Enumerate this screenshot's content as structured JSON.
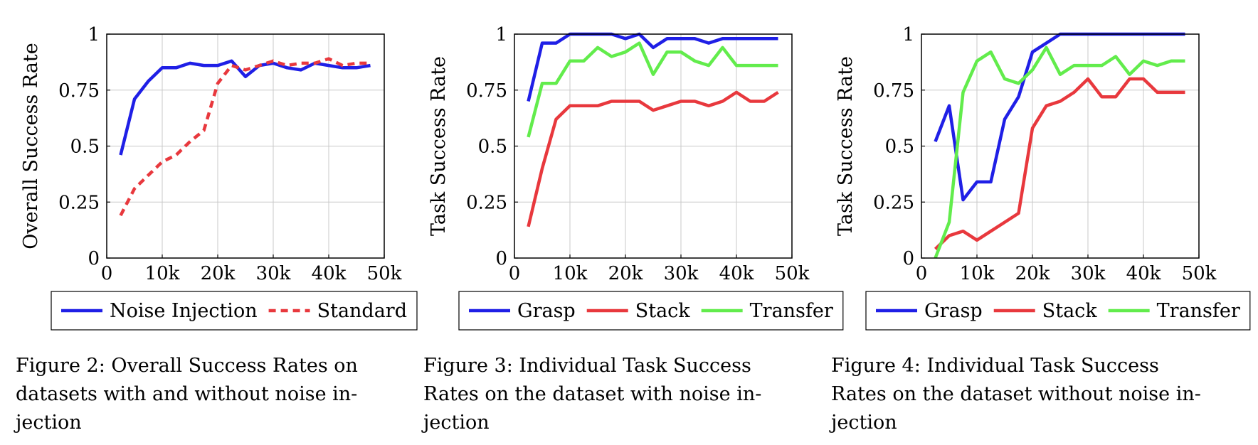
{
  "chart_data": [
    {
      "type": "line",
      "ylabel": "Overall Success Rate",
      "xlabel": "",
      "xlim": [
        0,
        50000
      ],
      "ylim": [
        0,
        1
      ],
      "xticks": [
        0,
        10000,
        20000,
        30000,
        40000,
        50000
      ],
      "xtick_labels": [
        "0",
        "10k",
        "20k",
        "30k",
        "40k",
        "50k"
      ],
      "yticks": [
        0,
        0.25,
        0.5,
        0.75,
        1
      ],
      "ytick_labels": [
        "0",
        "0.25",
        "0.5",
        "0.75",
        "1"
      ],
      "grid": true,
      "legend_position": "bottom",
      "series": [
        {
          "name": "Noise Injection",
          "color": "#1f1fe6",
          "dash": "solid",
          "x": [
            2500,
            5000,
            7500,
            10000,
            12500,
            15000,
            17500,
            20000,
            22500,
            25000,
            27500,
            30000,
            32500,
            35000,
            37500,
            40000,
            42500,
            45000,
            47500
          ],
          "y": [
            0.46,
            0.71,
            0.79,
            0.85,
            0.85,
            0.87,
            0.86,
            0.86,
            0.88,
            0.81,
            0.86,
            0.87,
            0.85,
            0.84,
            0.87,
            0.86,
            0.85,
            0.85,
            0.86
          ]
        },
        {
          "name": "Standard",
          "color": "#e8383d",
          "dash": "dashed",
          "x": [
            2500,
            5000,
            7500,
            10000,
            12500,
            15000,
            17500,
            20000,
            22500,
            25000,
            27500,
            30000,
            32500,
            35000,
            37500,
            40000,
            42500,
            45000,
            47500
          ],
          "y": [
            0.19,
            0.31,
            0.37,
            0.43,
            0.46,
            0.52,
            0.57,
            0.78,
            0.86,
            0.84,
            0.86,
            0.88,
            0.86,
            0.87,
            0.87,
            0.89,
            0.86,
            0.87,
            0.87
          ]
        }
      ],
      "caption": [
        "Figure 2: Overall Success Rates on",
        "datasets with and without noise in-",
        "jection"
      ]
    },
    {
      "type": "line",
      "ylabel": "Task Success Rate",
      "xlabel": "",
      "xlim": [
        0,
        50000
      ],
      "ylim": [
        0,
        1
      ],
      "xticks": [
        0,
        10000,
        20000,
        30000,
        40000,
        50000
      ],
      "xtick_labels": [
        "0",
        "10k",
        "20k",
        "30k",
        "40k",
        "50k"
      ],
      "yticks": [
        0,
        0.25,
        0.5,
        0.75,
        1
      ],
      "ytick_labels": [
        "0",
        "0.25",
        "0.5",
        "0.75",
        "1"
      ],
      "grid": true,
      "legend_position": "bottom",
      "series": [
        {
          "name": "Grasp",
          "color": "#1f1fe6",
          "dash": "solid",
          "x": [
            2500,
            5000,
            7500,
            10000,
            12500,
            15000,
            17500,
            20000,
            22500,
            25000,
            27500,
            30000,
            32500,
            35000,
            37500,
            40000,
            42500,
            45000,
            47500
          ],
          "y": [
            0.7,
            0.96,
            0.96,
            1.0,
            1.0,
            1.0,
            1.0,
            0.98,
            1.0,
            0.94,
            0.98,
            0.98,
            0.98,
            0.96,
            0.98,
            0.98,
            0.98,
            0.98,
            0.98
          ]
        },
        {
          "name": "Stack",
          "color": "#e8383d",
          "dash": "solid",
          "x": [
            2500,
            5000,
            7500,
            10000,
            12500,
            15000,
            17500,
            20000,
            22500,
            25000,
            27500,
            30000,
            32500,
            35000,
            37500,
            40000,
            42500,
            45000,
            47500
          ],
          "y": [
            0.14,
            0.4,
            0.62,
            0.68,
            0.68,
            0.68,
            0.7,
            0.7,
            0.7,
            0.66,
            0.68,
            0.7,
            0.7,
            0.68,
            0.7,
            0.74,
            0.7,
            0.7,
            0.74
          ]
        },
        {
          "name": "Transfer",
          "color": "#62ec4c",
          "dash": "solid",
          "x": [
            2500,
            5000,
            7500,
            10000,
            12500,
            15000,
            17500,
            20000,
            22500,
            25000,
            27500,
            30000,
            32500,
            35000,
            37500,
            40000,
            42500,
            45000,
            47500
          ],
          "y": [
            0.54,
            0.78,
            0.78,
            0.88,
            0.88,
            0.94,
            0.9,
            0.92,
            0.96,
            0.82,
            0.92,
            0.92,
            0.88,
            0.86,
            0.94,
            0.86,
            0.86,
            0.86,
            0.86
          ]
        }
      ],
      "caption": [
        "Figure 3: Individual Task Success",
        "Rates on the dataset with noise in-",
        "jection"
      ]
    },
    {
      "type": "line",
      "ylabel": "Task Success Rate",
      "xlabel": "",
      "xlim": [
        0,
        50000
      ],
      "ylim": [
        0,
        1
      ],
      "xticks": [
        0,
        10000,
        20000,
        30000,
        40000,
        50000
      ],
      "xtick_labels": [
        "0",
        "10k",
        "20k",
        "30k",
        "40k",
        "50k"
      ],
      "yticks": [
        0,
        0.25,
        0.5,
        0.75,
        1
      ],
      "ytick_labels": [
        "0",
        "0.25",
        "0.5",
        "0.75",
        "1"
      ],
      "grid": true,
      "legend_position": "bottom",
      "series": [
        {
          "name": "Grasp",
          "color": "#1f1fe6",
          "dash": "solid",
          "x": [
            2500,
            5000,
            7500,
            10000,
            12500,
            15000,
            17500,
            20000,
            22500,
            25000,
            27500,
            30000,
            32500,
            35000,
            37500,
            40000,
            42500,
            45000,
            47500
          ],
          "y": [
            0.52,
            0.68,
            0.26,
            0.34,
            0.34,
            0.62,
            0.72,
            0.92,
            0.96,
            1.0,
            1.0,
            1.0,
            1.0,
            1.0,
            1.0,
            1.0,
            1.0,
            1.0,
            1.0
          ]
        },
        {
          "name": "Stack",
          "color": "#e8383d",
          "dash": "solid",
          "x": [
            2500,
            5000,
            7500,
            10000,
            12500,
            15000,
            17500,
            20000,
            22500,
            25000,
            27500,
            30000,
            32500,
            35000,
            37500,
            40000,
            42500,
            45000,
            47500
          ],
          "y": [
            0.04,
            0.1,
            0.12,
            0.08,
            0.12,
            0.16,
            0.2,
            0.58,
            0.68,
            0.7,
            0.74,
            0.8,
            0.72,
            0.72,
            0.8,
            0.8,
            0.74,
            0.74,
            0.74
          ]
        },
        {
          "name": "Transfer",
          "color": "#62ec4c",
          "dash": "solid",
          "x": [
            2500,
            5000,
            7500,
            10000,
            12500,
            15000,
            17500,
            20000,
            22500,
            25000,
            27500,
            30000,
            32500,
            35000,
            37500,
            40000,
            42500,
            45000,
            47500
          ],
          "y": [
            0.0,
            0.16,
            0.74,
            0.88,
            0.92,
            0.8,
            0.78,
            0.84,
            0.94,
            0.82,
            0.86,
            0.86,
            0.86,
            0.9,
            0.82,
            0.88,
            0.86,
            0.88,
            0.88
          ]
        }
      ],
      "caption": [
        "Figure 4: Individual Task Success",
        "Rates on the dataset without noise in-",
        "jection"
      ]
    }
  ]
}
